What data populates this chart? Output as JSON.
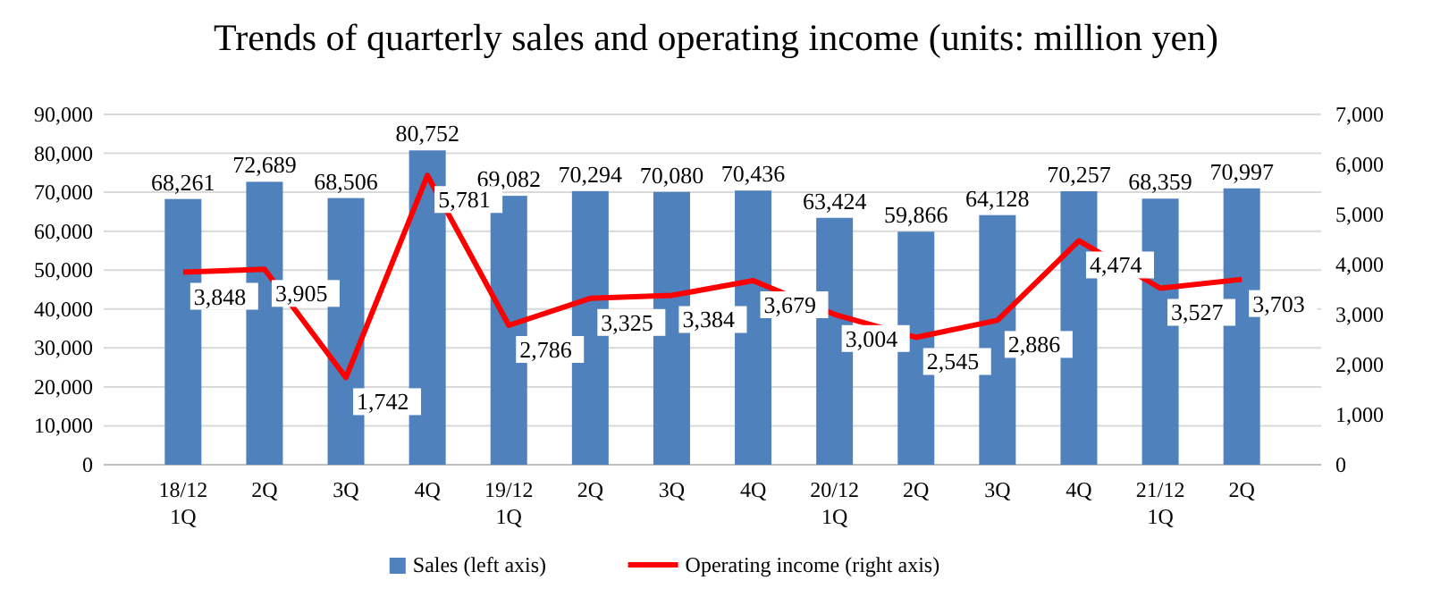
{
  "chart_data": {
    "type": "bar",
    "title": "Trends of quarterly sales and operating income (units: million yen)",
    "categories": [
      "18/12 1Q",
      "2Q",
      "3Q",
      "4Q",
      "19/12 1Q",
      "2Q",
      "3Q",
      "4Q",
      "20/12 1Q",
      "2Q",
      "3Q",
      "4Q",
      "21/12 1Q",
      "2Q"
    ],
    "series": [
      {
        "name": "Sales (left axis)",
        "color": "#4f81bd",
        "values": [
          68261,
          72689,
          68506,
          80752,
          69082,
          70294,
          70080,
          70436,
          63424,
          59866,
          64128,
          70257,
          68359,
          70997
        ],
        "value_labels": [
          "68,261",
          "72,689",
          "68,506",
          "80,752",
          "69,082",
          "70,294",
          "70,080",
          "70,436",
          "63,424",
          "59,866",
          "64,128",
          "70,257",
          "68,359",
          "70,997"
        ]
      },
      {
        "name": "Operating income (right axis)",
        "type": "line",
        "axis": "y2",
        "color": "#ff0000",
        "values": [
          3848,
          3905,
          1742,
          5781,
          2786,
          3325,
          3384,
          3679,
          3004,
          2545,
          2886,
          4474,
          3527,
          3703
        ],
        "value_labels": [
          "3,848",
          "3,905",
          "1,742",
          "5,781",
          "2,786",
          "3,325",
          "3,384",
          "3,679",
          "3,004",
          "2,545",
          "2,886",
          "4,474",
          "3,527",
          "3,703"
        ]
      }
    ],
    "ylim": [
      0,
      90000
    ],
    "yticks": [
      {
        "value": 0,
        "label": "0"
      },
      {
        "value": 10000,
        "label": "10,000"
      },
      {
        "value": 20000,
        "label": "20,000"
      },
      {
        "value": 30000,
        "label": "30,000"
      },
      {
        "value": 40000,
        "label": "40,000"
      },
      {
        "value": 50000,
        "label": "50,000"
      },
      {
        "value": 60000,
        "label": "60,000"
      },
      {
        "value": 70000,
        "label": "70,000"
      },
      {
        "value": 80000,
        "label": "80,000"
      },
      {
        "value": 90000,
        "label": "90,000"
      }
    ],
    "y2lim": [
      0,
      7000
    ],
    "y2ticks": [
      {
        "value": 0,
        "label": "0"
      },
      {
        "value": 1000,
        "label": "1,000"
      },
      {
        "value": 2000,
        "label": "2,000"
      },
      {
        "value": 3000,
        "label": "3,000"
      },
      {
        "value": 4000,
        "label": "4,000"
      },
      {
        "value": 5000,
        "label": "5,000"
      },
      {
        "value": 6000,
        "label": "6,000"
      },
      {
        "value": 7000,
        "label": "7,000"
      }
    ],
    "grid": "y",
    "legend": "bottom",
    "marker": "none",
    "line_style": "solid"
  }
}
